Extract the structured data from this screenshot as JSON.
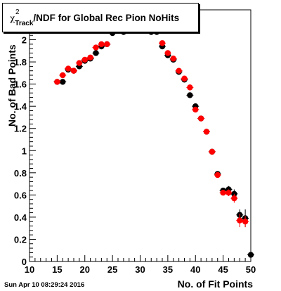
{
  "title": {
    "chi": "χ",
    "sup": "2",
    "sub": "Track",
    "rest": "/NDF for Global Rec Pion NoHits"
  },
  "timestamp": "Sun Apr 10 08:29:24 2016",
  "chart_data": {
    "type": "scatter",
    "xlabel": "No. of Fit Points",
    "ylabel": "No. of Bad Points",
    "xlim": [
      10,
      50
    ],
    "ylim": [
      0,
      2.2
    ],
    "x_ticks": [
      "10",
      "15",
      "20",
      "25",
      "30",
      "35",
      "40",
      "45",
      "50"
    ],
    "y_ticks": [
      "0",
      "0.2",
      "0.4",
      "0.6",
      "0.8",
      "1",
      "1.2",
      "1.4",
      "1.6",
      "1.8",
      "2",
      "2.2"
    ],
    "grid": false,
    "colors": {
      "series1": "#000000",
      "series2": "#ff0000"
    },
    "series": [
      {
        "x": [
          15,
          16,
          17,
          18,
          19,
          20,
          21,
          22,
          23,
          24,
          25,
          26,
          27,
          28,
          29,
          30,
          31,
          32,
          33,
          34,
          35,
          36,
          37,
          38,
          39,
          40,
          41,
          42,
          43,
          44,
          45,
          46,
          47,
          48,
          49,
          50
        ],
        "y": [
          1.62,
          1.62,
          1.73,
          1.72,
          1.76,
          1.81,
          1.83,
          1.88,
          1.94,
          1.96,
          2.06,
          2.1,
          2.07,
          2.11,
          2.15,
          2.11,
          2.09,
          2.07,
          2.07,
          1.94,
          1.86,
          1.82,
          1.71,
          1.64,
          1.5,
          1.4,
          1.29,
          1.17,
          0.99,
          0.79,
          0.64,
          0.65,
          0.61,
          0.42,
          0.39,
          0.06
        ],
        "err": [
          0.01,
          0.01,
          0.01,
          0.01,
          0.01,
          0.01,
          0.01,
          0.01,
          0.01,
          0.01,
          0.01,
          0.01,
          0.01,
          0.01,
          0.01,
          0.01,
          0.01,
          0.01,
          0.01,
          0.01,
          0.01,
          0.01,
          0.01,
          0.01,
          0.01,
          0.01,
          0.01,
          0.01,
          0.01,
          0.02,
          0.02,
          0.03,
          0.04,
          0.05,
          0.08,
          0.05
        ]
      },
      {
        "x": [
          15,
          16,
          17,
          18,
          19,
          20,
          21,
          22,
          23,
          24,
          25,
          26,
          27,
          28,
          29,
          30,
          31,
          32,
          33,
          34,
          35,
          36,
          37,
          38,
          39,
          40,
          41,
          42,
          43,
          44,
          45,
          46,
          47,
          48,
          49
        ],
        "y": [
          1.62,
          1.68,
          1.74,
          1.72,
          1.79,
          1.82,
          1.84,
          1.93,
          1.96,
          1.96,
          2.13,
          2.13,
          2.12,
          2.14,
          2.2,
          2.19,
          2.16,
          2.09,
          2.08,
          1.97,
          1.88,
          1.83,
          1.72,
          1.65,
          1.57,
          1.37,
          1.29,
          1.17,
          0.99,
          0.78,
          0.62,
          0.62,
          0.57,
          0.37,
          0.36
        ],
        "err": [
          0.01,
          0.01,
          0.01,
          0.01,
          0.01,
          0.01,
          0.01,
          0.01,
          0.01,
          0.01,
          0.01,
          0.01,
          0.01,
          0.01,
          0.01,
          0.01,
          0.01,
          0.01,
          0.01,
          0.01,
          0.01,
          0.01,
          0.01,
          0.01,
          0.01,
          0.01,
          0.01,
          0.01,
          0.01,
          0.02,
          0.02,
          0.03,
          0.04,
          0.06,
          0.05
        ]
      }
    ]
  }
}
